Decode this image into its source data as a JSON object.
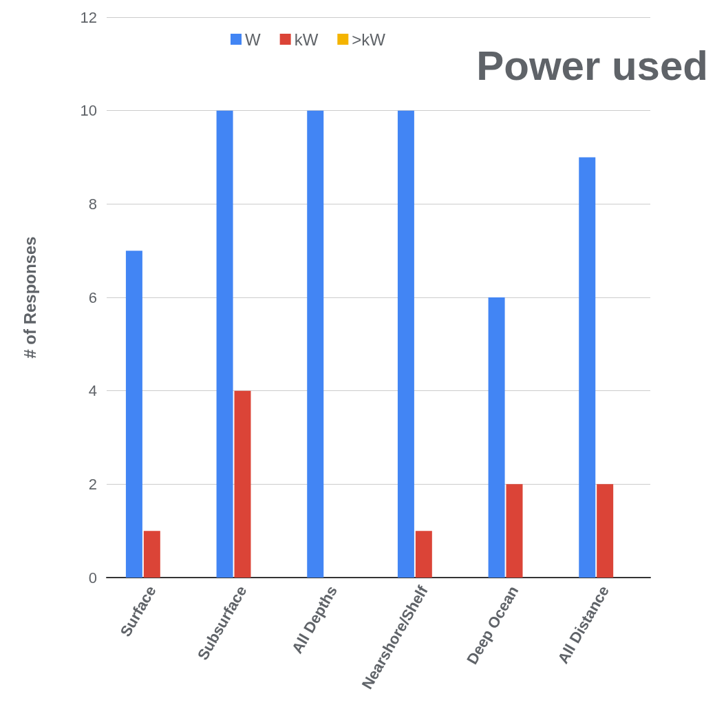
{
  "chart_data": {
    "type": "bar",
    "title": "Power used",
    "ylabel": "# of Responses",
    "categories": [
      "Surface",
      "Subsurface",
      "All Depths",
      "Nearshore/Shelf",
      "Deep Ocean",
      "All Distance"
    ],
    "series": [
      {
        "name": "W",
        "color": "#4285f4",
        "values": [
          7,
          10,
          10,
          10,
          6,
          9
        ]
      },
      {
        "name": "kW",
        "color": "#db4437",
        "values": [
          1,
          4,
          0,
          1,
          2,
          2
        ]
      },
      {
        "name": ">kW",
        "color": "#f4b400",
        "values": [
          0,
          0,
          0,
          0,
          0,
          0
        ]
      }
    ],
    "ylim": [
      0,
      12
    ],
    "yticks": [
      0,
      2,
      4,
      6,
      8,
      10,
      12
    ],
    "grid": "y",
    "legend": "top"
  }
}
